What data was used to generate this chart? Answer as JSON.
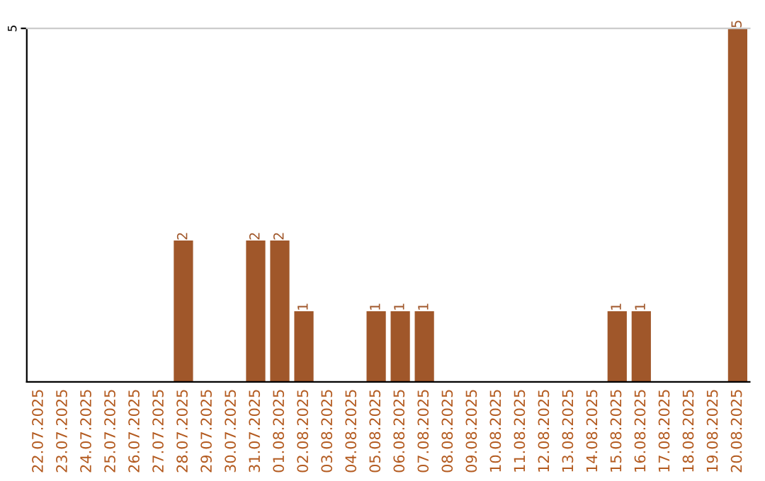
{
  "chart_data": {
    "type": "bar",
    "categories": [
      "22.07.2025",
      "23.07.2025",
      "24.07.2025",
      "25.07.2025",
      "26.07.2025",
      "27.07.2025",
      "28.07.2025",
      "29.07.2025",
      "30.07.2025",
      "31.07.2025",
      "01.08.2025",
      "02.08.2025",
      "03.08.2025",
      "04.08.2025",
      "05.08.2025",
      "06.08.2025",
      "07.08.2025",
      "08.08.2025",
      "09.08.2025",
      "10.08.2025",
      "11.08.2025",
      "12.08.2025",
      "13.08.2025",
      "14.08.2025",
      "15.08.2025",
      "16.08.2025",
      "17.08.2025",
      "18.08.2025",
      "19.08.2025",
      "20.08.2025"
    ],
    "series": [
      {
        "color": "#a0572a",
        "values": [
          0,
          0,
          0,
          0,
          0,
          0,
          2,
          0,
          0,
          2,
          2,
          1,
          0,
          0,
          1,
          1,
          1,
          0,
          0,
          0,
          0,
          0,
          0,
          0,
          1,
          1,
          0,
          0,
          0,
          5
        ],
        "value_labels": [
          null,
          null,
          null,
          null,
          null,
          null,
          "2",
          null,
          null,
          "2",
          "2",
          "1",
          null,
          null,
          "1",
          "1",
          "1",
          null,
          null,
          null,
          null,
          null,
          null,
          null,
          "1",
          "1",
          null,
          null,
          null,
          "5"
        ]
      }
    ],
    "ylim": [
      0,
      5
    ],
    "yticks": [
      5
    ]
  }
}
